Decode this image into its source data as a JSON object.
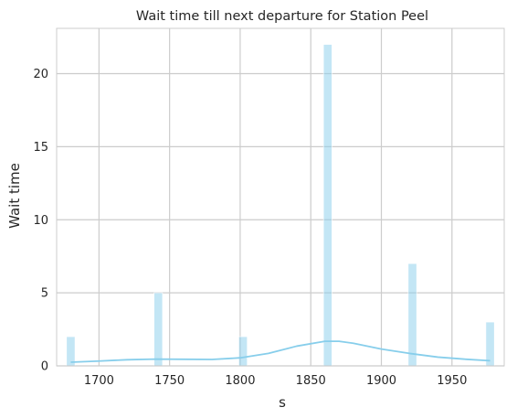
{
  "chart_data": {
    "type": "bar",
    "title": "Wait time till next departure for Station Peel",
    "xlabel": "s",
    "ylabel": "Wait time",
    "xlim": [
      1670,
      1987
    ],
    "ylim": [
      0,
      23.1
    ],
    "x_ticks": [
      1700,
      1750,
      1800,
      1850,
      1900,
      1950
    ],
    "y_ticks": [
      0,
      5,
      10,
      15,
      20
    ],
    "grid": true,
    "bar_color": "#87CEEB",
    "bar_opacity": 0.5,
    "kde_color": "#87CEEB",
    "bars": [
      {
        "x": 1680,
        "value": 2
      },
      {
        "x": 1742,
        "value": 5
      },
      {
        "x": 1802,
        "value": 2
      },
      {
        "x": 1862,
        "value": 22
      },
      {
        "x": 1922,
        "value": 7
      },
      {
        "x": 1977,
        "value": 3
      }
    ],
    "bin_width": 6,
    "kde_curve": [
      {
        "x": 1680,
        "y": 0.25
      },
      {
        "x": 1700,
        "y": 0.33
      },
      {
        "x": 1720,
        "y": 0.42
      },
      {
        "x": 1740,
        "y": 0.46
      },
      {
        "x": 1760,
        "y": 0.45
      },
      {
        "x": 1780,
        "y": 0.44
      },
      {
        "x": 1800,
        "y": 0.55
      },
      {
        "x": 1820,
        "y": 0.85
      },
      {
        "x": 1840,
        "y": 1.35
      },
      {
        "x": 1860,
        "y": 1.68
      },
      {
        "x": 1870,
        "y": 1.68
      },
      {
        "x": 1880,
        "y": 1.55
      },
      {
        "x": 1900,
        "y": 1.15
      },
      {
        "x": 1920,
        "y": 0.85
      },
      {
        "x": 1940,
        "y": 0.6
      },
      {
        "x": 1960,
        "y": 0.45
      },
      {
        "x": 1977,
        "y": 0.35
      }
    ]
  }
}
